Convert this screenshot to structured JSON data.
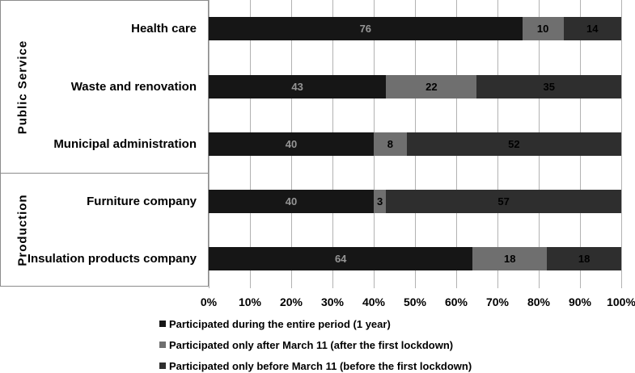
{
  "chart_data": {
    "type": "bar",
    "orientation": "horizontal",
    "stacked": true,
    "unit": "%",
    "xlim": [
      0,
      100
    ],
    "x_ticks": [
      "0%",
      "10%",
      "20%",
      "30%",
      "40%",
      "50%",
      "60%",
      "70%",
      "80%",
      "90%",
      "100%"
    ],
    "grid": "vertical",
    "legend_position": "bottom-left",
    "groups": [
      {
        "label": "Public Service",
        "categories": [
          "Health care",
          "Waste and renovation",
          "Municipal administration"
        ]
      },
      {
        "label": "Production",
        "categories": [
          "Furniture company",
          "Insulation products company"
        ]
      }
    ],
    "categories": [
      "Health care",
      "Waste and renovation",
      "Municipal administration",
      "Furniture company",
      "Insulation products company"
    ],
    "series": [
      {
        "name": "Participated during the entire period (1 year)",
        "color": "#161616",
        "value_label_color": "#959595",
        "values": [
          76,
          43,
          40,
          40,
          64
        ]
      },
      {
        "name": "Participated only after March 11 (after the first lockdown)",
        "color": "#6f6f6f",
        "value_label_color": "#000000",
        "values": [
          10,
          22,
          8,
          3,
          18
        ]
      },
      {
        "name": "Participated only before March 11 (before the first lockdown)",
        "color": "#2e2e2e",
        "value_label_color": "#000000",
        "values": [
          14,
          35,
          52,
          57,
          18
        ]
      }
    ]
  },
  "colors": {
    "background": "#ffffff",
    "gridline": "#b2b2b2",
    "panel_border": "#8c8c8c",
    "text": "#000000"
  }
}
